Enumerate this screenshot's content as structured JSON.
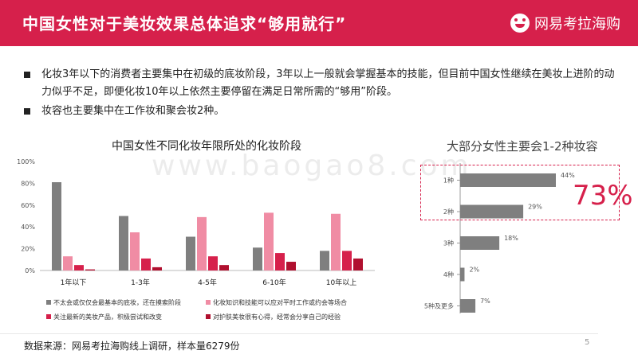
{
  "header": {
    "title": "中国女性对于美妆效果总体追求“够用就行”",
    "logo_text": "网易考拉海购"
  },
  "bullets": [
    "化妆3年以下的消费者主要集中在初级的底妆阶段，3年以上一般就会掌握基本的技能，但目前中国女性继续在美妆上进阶的动力似乎不足，即便化妆10年以上依然主要停留在满足日常所需的“够用”阶段。",
    "妆容也主要集中在工作妆和聚会妆2种。"
  ],
  "watermark": "www.baogao8.com",
  "big_callout": "73%",
  "source": "数据来源：网易考拉海购线上调研，样本量6279份",
  "page_number": "5",
  "colors": {
    "accent": "#d6204b",
    "series": [
      "#7f7f7f",
      "#f08ca4",
      "#d6204b",
      "#b0102f"
    ],
    "hbar": "#7f7f7f"
  },
  "chart_data": [
    {
      "type": "bar",
      "title": "中国女性不同化妆年限所处的化妆阶段",
      "categories": [
        "1年以下",
        "1-3年",
        "4-5年",
        "6-10年",
        "10年以上"
      ],
      "ylim": [
        0,
        100
      ],
      "yticks": [
        "0%",
        "20%",
        "40%",
        "60%",
        "80%",
        "100%"
      ],
      "ytick_values": [
        0,
        20,
        40,
        60,
        80,
        100
      ],
      "legend_position": "bottom",
      "series": [
        {
          "name": "不太会或仅仅会最基本的底妆，还在摸索阶段",
          "values": [
            81,
            50,
            31,
            21,
            18
          ]
        },
        {
          "name": "化妆知识和技能可以应对平时工作或约会等场合",
          "values": [
            13,
            35,
            49,
            53,
            52
          ]
        },
        {
          "name": "关注最新的美妆产品，积极尝试和改变",
          "values": [
            5,
            11,
            13,
            16,
            18
          ]
        },
        {
          "name": "对护肤美妆很有心得，经常会分享自己的经验",
          "values": [
            1,
            3,
            5,
            8,
            11
          ]
        }
      ]
    },
    {
      "type": "bar",
      "orientation": "horizontal",
      "title": "大部分女性主要会1-2种妆容",
      "categories": [
        "1种",
        "2种",
        "3种",
        "4种",
        "5种及更多"
      ],
      "values": [
        44,
        29,
        18,
        2,
        7
      ],
      "value_labels": [
        "44%",
        "29%",
        "18%",
        "2%",
        "7%"
      ]
    }
  ]
}
